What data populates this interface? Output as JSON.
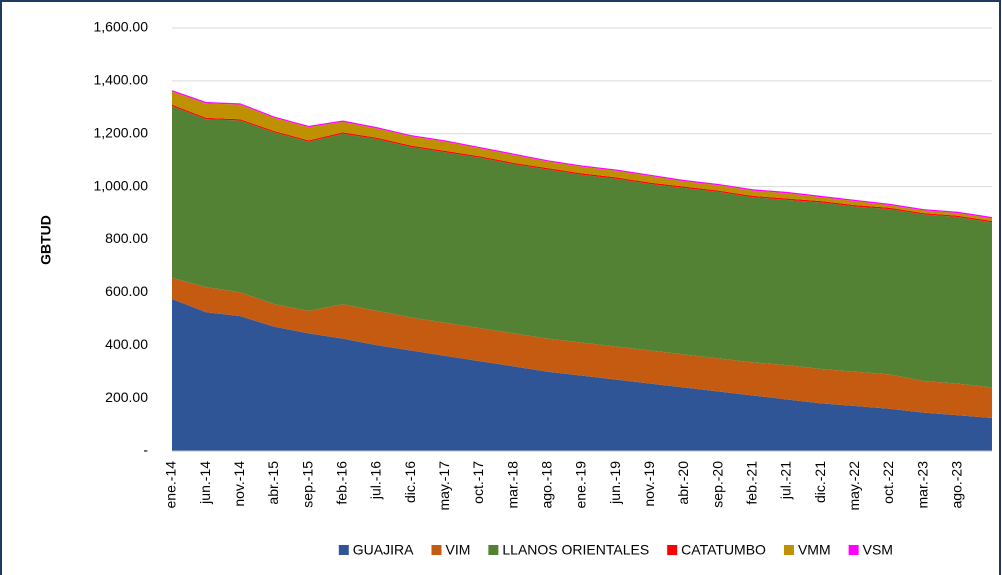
{
  "chart_data": {
    "type": "stacked-area",
    "y_label": "GBTUD",
    "categories": [
      "ene.-14",
      "jun.-14",
      "nov.-14",
      "abr.-15",
      "sep.-15",
      "feb.-16",
      "jul.-16",
      "dic.-16",
      "may.-17",
      "oct.-17",
      "mar.-18",
      "ago.-18",
      "ene.-19",
      "jun.-19",
      "nov.-19",
      "abr.-20",
      "sep.-20",
      "feb.-21",
      "jul.-21",
      "dic.-21",
      "may.-22",
      "oct.-22",
      "mar.-23",
      "ago.-23",
      null
    ],
    "series": [
      {
        "name": "GUAJIRA",
        "color": "#2f5597",
        "values": [
          575,
          525,
          510,
          470,
          445,
          425,
          400,
          380,
          360,
          340,
          320,
          300,
          285,
          270,
          255,
          240,
          225,
          210,
          195,
          180,
          170,
          160,
          145,
          135,
          125
        ]
      },
      {
        "name": "VIM",
        "color": "#c55a11",
        "values": [
          80,
          95,
          90,
          85,
          85,
          130,
          130,
          125,
          125,
          125,
          125,
          125,
          125,
          125,
          125,
          125,
          125,
          125,
          130,
          130,
          130,
          130,
          120,
          120,
          115
        ]
      },
      {
        "name": "LLANOS ORIENTALES",
        "color": "#548235",
        "values": [
          650,
          635,
          650,
          650,
          640,
          645,
          650,
          645,
          645,
          645,
          640,
          640,
          635,
          635,
          630,
          630,
          630,
          625,
          625,
          630,
          625,
          625,
          630,
          630,
          625
        ]
      },
      {
        "name": "CATATUMBO",
        "color": "#ff0000",
        "values": [
          5,
          5,
          5,
          5,
          5,
          5,
          5,
          5,
          5,
          5,
          5,
          5,
          5,
          5,
          5,
          5,
          5,
          5,
          5,
          5,
          5,
          5,
          5,
          5,
          5
        ]
      },
      {
        "name": "VMM",
        "color": "#bf9000",
        "values": [
          50,
          55,
          55,
          50,
          50,
          40,
          35,
          35,
          35,
          30,
          30,
          25,
          25,
          25,
          25,
          20,
          20,
          20,
          20,
          15,
          15,
          10,
          10,
          10,
          10
        ]
      },
      {
        "name": "VSM",
        "color": "#ff00ff",
        "values": [
          5,
          5,
          5,
          5,
          5,
          5,
          5,
          5,
          5,
          5,
          5,
          5,
          5,
          5,
          5,
          5,
          5,
          5,
          5,
          5,
          5,
          5,
          5,
          5,
          5
        ]
      }
    ],
    "ylim": [
      0,
      1600
    ],
    "yticks": [
      {
        "value": 0,
        "label": "-"
      },
      {
        "value": 200,
        "label": "200.00"
      },
      {
        "value": 400,
        "label": "400.00"
      },
      {
        "value": 600,
        "label": "600.00"
      },
      {
        "value": 800,
        "label": "800.00"
      },
      {
        "value": 1000,
        "label": "1,000.00"
      },
      {
        "value": 1200,
        "label": "1,200.00"
      },
      {
        "value": 1400,
        "label": "1,400.00"
      },
      {
        "value": 1600,
        "label": "1,600.00"
      }
    ],
    "grid": true,
    "legend": "bottom"
  }
}
